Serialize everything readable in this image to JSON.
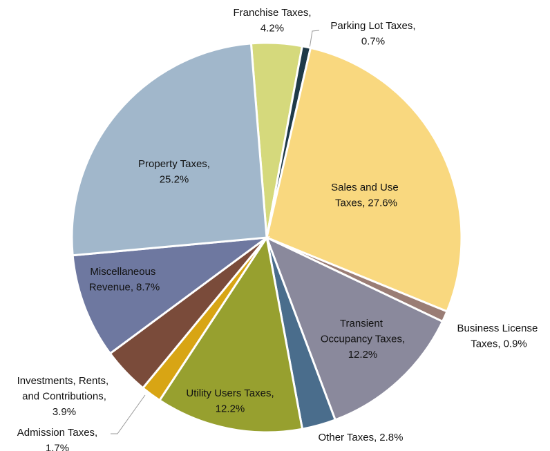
{
  "chart_data": {
    "type": "pie",
    "categories": [
      "Franchise Taxes,",
      "Parking Lot Taxes,",
      "Sales and Use Taxes,",
      "Business License Taxes,",
      "Transient Occupancy Taxes,",
      "Other Taxes,",
      "Utility Users Taxes,",
      "Admission Taxes,",
      "Investments, Rents, and Contributions,",
      "Miscellaneous Revenue,",
      "Property Taxes,"
    ],
    "values": [
      4.2,
      0.7,
      27.6,
      0.9,
      12.2,
      2.8,
      12.2,
      1.7,
      3.9,
      8.7,
      25.2
    ],
    "value_labels": [
      "4.2%",
      "0.7%",
      "27.6%",
      "0.9%",
      "12.2%",
      "2.8%",
      "12.2%",
      "1.7%",
      "3.9%",
      "8.7%",
      "25.2%"
    ],
    "colors": [
      "#d5d97c",
      "#1f3a48",
      "#f9d87f",
      "#9a7d75",
      "#8a899c",
      "#4a6d8c",
      "#97a02f",
      "#d8a514",
      "#7a4b3a",
      "#6e78a0",
      "#a1b7cb"
    ]
  }
}
